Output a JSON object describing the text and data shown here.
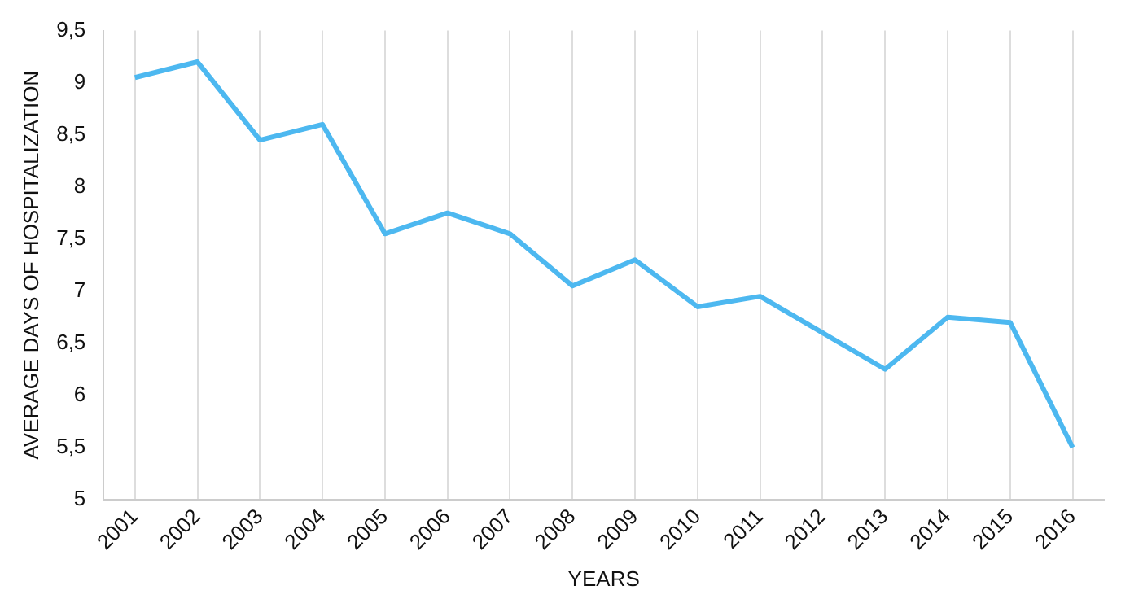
{
  "chart_data": {
    "type": "line",
    "xlabel": "YEARS",
    "ylabel": "AVERAGE DAYS OF HOSPITALIZATION",
    "categories": [
      "2001",
      "2002",
      "2003",
      "2004",
      "2005",
      "2006",
      "2007",
      "2008",
      "2009",
      "2010",
      "2011",
      "2012",
      "2013",
      "2014",
      "2015",
      "2016"
    ],
    "series": [
      {
        "color": "#4db8f0",
        "values": [
          9.05,
          9.2,
          8.45,
          8.6,
          7.55,
          7.75,
          7.55,
          7.05,
          7.3,
          6.85,
          6.95,
          6.6,
          6.25,
          6.75,
          6.7,
          5.5
        ]
      }
    ],
    "ylim": [
      5,
      9.5
    ],
    "yticks": [
      {
        "value": 5,
        "label": "5"
      },
      {
        "value": 5.5,
        "label": "5,5"
      },
      {
        "value": 6,
        "label": "6"
      },
      {
        "value": 6.5,
        "label": "6,5"
      },
      {
        "value": 7,
        "label": "7"
      },
      {
        "value": 7.5,
        "label": "7,5"
      },
      {
        "value": 8,
        "label": "8"
      },
      {
        "value": 8.5,
        "label": "8,5"
      },
      {
        "value": 9,
        "label": "9"
      },
      {
        "value": 9.5,
        "label": "9,5"
      }
    ],
    "grid": "x",
    "legend": false,
    "marker": "none",
    "line_style": "solid"
  }
}
